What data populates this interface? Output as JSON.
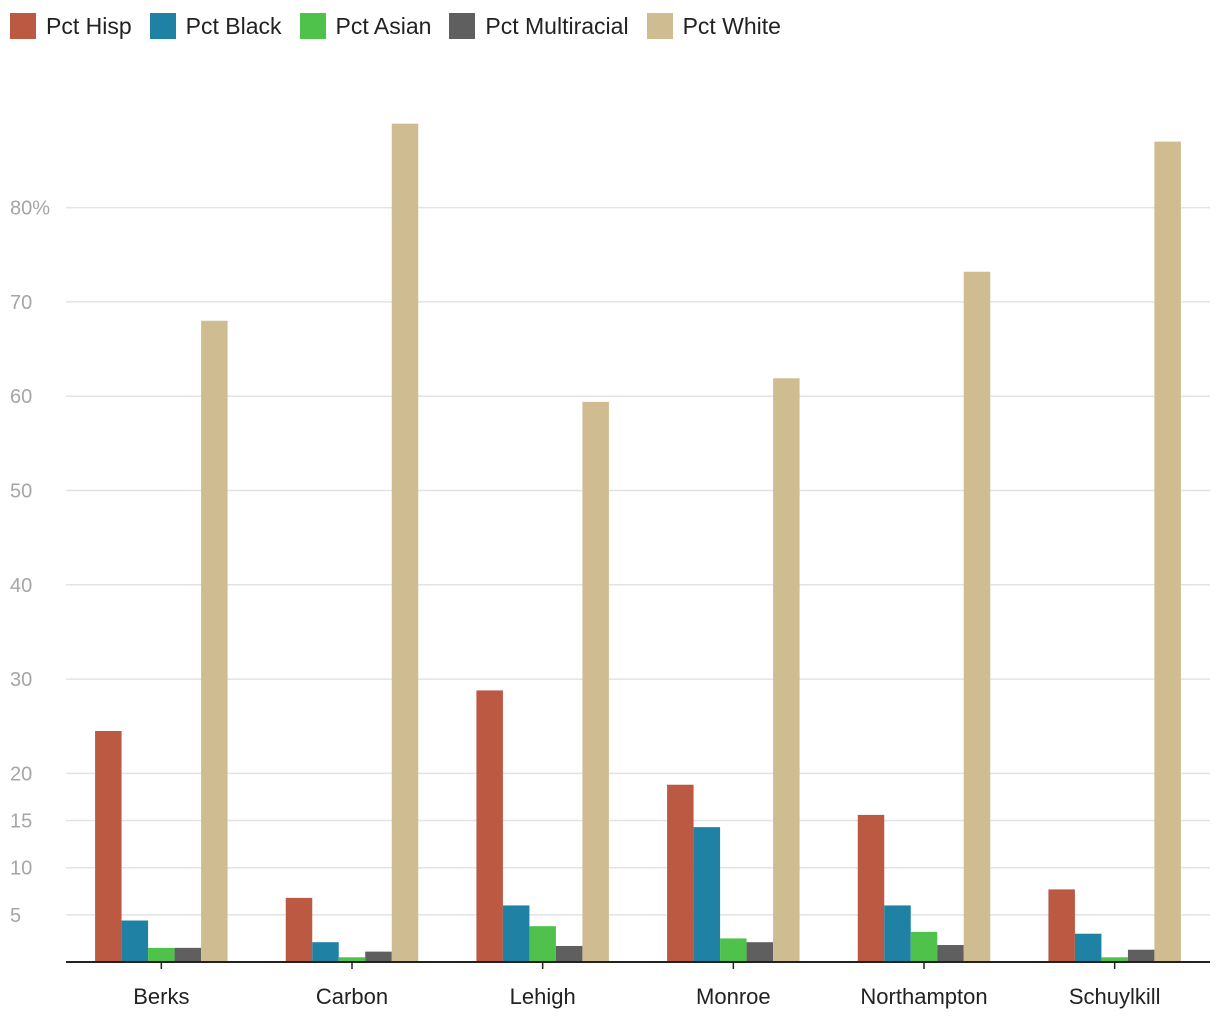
{
  "chart_data": {
    "type": "bar",
    "categories": [
      "Berks",
      "Carbon",
      "Lehigh",
      "Monroe",
      "Northampton",
      "Schuylkill"
    ],
    "series": [
      {
        "name": "Pct Hisp",
        "color": "#bc5943",
        "values": [
          24.5,
          6.8,
          28.8,
          18.8,
          15.6,
          7.7
        ]
      },
      {
        "name": "Pct Black",
        "color": "#1f82a4",
        "values": [
          4.4,
          2.1,
          6.0,
          14.3,
          6.0,
          3.0
        ]
      },
      {
        "name": "Pct Asian",
        "color": "#4ec24a",
        "values": [
          1.5,
          0.5,
          3.8,
          2.5,
          3.2,
          0.5
        ]
      },
      {
        "name": "Pct Multiracial",
        "color": "#5f5f5f",
        "values": [
          1.5,
          1.1,
          1.7,
          2.1,
          1.8,
          1.3
        ]
      },
      {
        "name": "Pct White",
        "color": "#cfbd91",
        "values": [
          68.0,
          88.9,
          59.4,
          61.9,
          73.2,
          87.0
        ]
      }
    ],
    "y_ticks": [
      {
        "value": 5,
        "label": "5"
      },
      {
        "value": 10,
        "label": "10"
      },
      {
        "value": 15,
        "label": "15"
      },
      {
        "value": 20,
        "label": "20"
      },
      {
        "value": 30,
        "label": "30"
      },
      {
        "value": 40,
        "label": "40"
      },
      {
        "value": 50,
        "label": "50"
      },
      {
        "value": 60,
        "label": "60"
      },
      {
        "value": 70,
        "label": "70"
      },
      {
        "value": 80,
        "label": "80%"
      }
    ],
    "ylim": [
      0,
      90
    ],
    "grid": true,
    "legend_position": "top-left"
  }
}
